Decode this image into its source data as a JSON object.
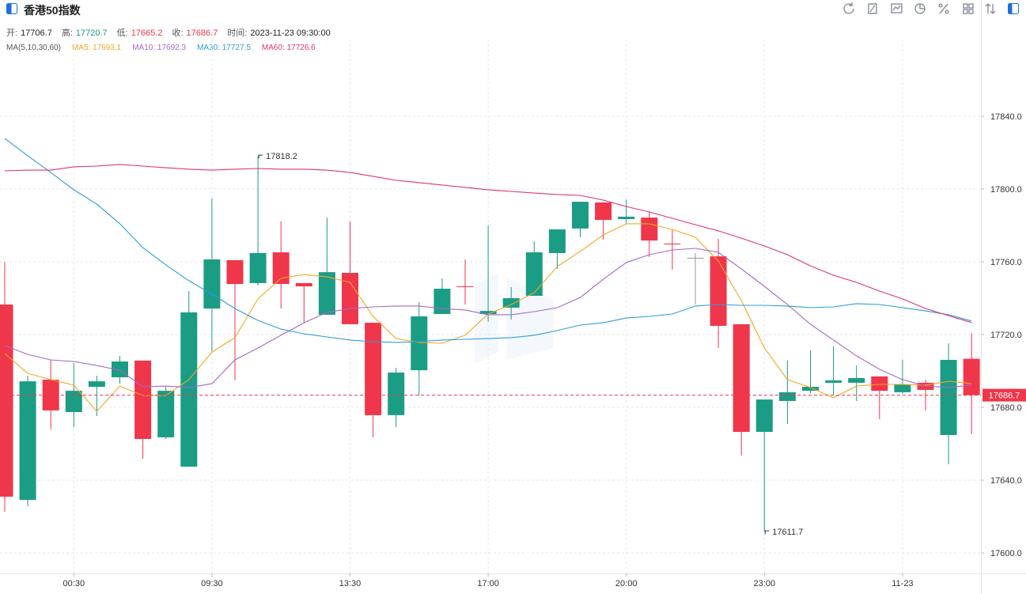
{
  "chart_data": {
    "type": "candlestick",
    "title": "香港50指数",
    "header": {
      "info": [
        {
          "label": "开:",
          "value": 17706.7,
          "color": "#222222"
        },
        {
          "label": "高:",
          "value": 17720.7,
          "color": "#1b9c85"
        },
        {
          "label": "低:",
          "value": 17665.2,
          "color": "#f0364a"
        },
        {
          "label": "收:",
          "value": 17686.7,
          "color": "#f0364a"
        },
        {
          "label": "时间:",
          "value": "2023-11-23 09:30:00",
          "color": "#222222"
        }
      ]
    },
    "ma_title": "MA(5,10,30,60)",
    "legend_separator": ":",
    "categories": [
      "",
      "",
      "",
      "00:30",
      "",
      "",
      "",
      "",
      "",
      "09:30",
      "",
      "",
      "",
      "",
      "",
      "13:30",
      "",
      "",
      "",
      "",
      "",
      "17:00",
      "",
      "",
      "",
      "",
      "",
      "20:00",
      "",
      "",
      "",
      "",
      "",
      "23:00",
      "",
      "",
      "",
      "",
      "",
      "11-23",
      "",
      "",
      ""
    ],
    "open": [
      17736.5,
      17629.1,
      17695.2,
      17677.4,
      17691.3,
      17696.5,
      17705.7,
      17663.5,
      17647.4,
      17734.3,
      17760.9,
      17748.3,
      17765.2,
      17748.3,
      17730.9,
      17753.9,
      17726.5,
      17675.7,
      17700.4,
      17731.3,
      17746.5,
      17731.3,
      17734.8,
      17741.3,
      17764.8,
      17778.3,
      17792.6,
      17783.5,
      17784.3,
      17770.0,
      17762.2,
      17763.0,
      17725.7,
      17666.5,
      17683.5,
      17689.1,
      17693.5,
      17693.5,
      17697.0,
      17688.3,
      17693.5,
      17664.8,
      17706.7
    ],
    "high": [
      17760.0,
      17697.4,
      17706.1,
      17704.3,
      17697.4,
      17708.3,
      17705.7,
      17691.3,
      17743.9,
      17794.8,
      17760.9,
      17818.2,
      17782.2,
      17748.3,
      17784.3,
      17782.2,
      17726.5,
      17701.7,
      17737.8,
      17750.9,
      17761.3,
      17780.0,
      17746.1,
      17771.3,
      17777.8,
      17793.0,
      17792.6,
      17794.3,
      17787.4,
      17777.8,
      17764.8,
      17772.6,
      17725.7,
      17684.3,
      17705.7,
      17711.3,
      17713.5,
      17703.0,
      17697.0,
      17706.1,
      17695.2,
      17715.2,
      17720.7
    ],
    "low": [
      17622.6,
      17625.7,
      17667.8,
      17669.1,
      17675.2,
      17693.0,
      17651.7,
      17662.6,
      17647.4,
      17710.9,
      17694.8,
      17747.0,
      17734.3,
      17726.5,
      17730.9,
      17725.7,
      17663.5,
      17669.1,
      17686.5,
      17731.3,
      17736.5,
      17727.0,
      17728.3,
      17741.3,
      17756.1,
      17773.5,
      17772.2,
      17780.9,
      17762.6,
      17755.7,
      17736.5,
      17712.6,
      17653.5,
      17611.7,
      17670.9,
      17687.8,
      17686.5,
      17683.5,
      17673.5,
      17687.4,
      17678.3,
      17648.7,
      17665.2
    ],
    "close": [
      17630.9,
      17694.3,
      17678.3,
      17689.1,
      17694.3,
      17705.2,
      17662.6,
      17689.1,
      17732.2,
      17761.3,
      17747.8,
      17764.8,
      17747.8,
      17746.5,
      17754.3,
      17725.7,
      17675.7,
      17699.1,
      17730.0,
      17745.2,
      17746.1,
      17733.0,
      17740.0,
      17765.2,
      17777.8,
      17793.0,
      17783.0,
      17784.8,
      17771.7,
      17769.6,
      17762.2,
      17724.8,
      17666.5,
      17684.3,
      17688.3,
      17691.3,
      17694.8,
      17696.1,
      17689.1,
      17692.6,
      17689.6,
      17706.1,
      17686.7
    ],
    "up_color": "#1b9c85",
    "down_color": "#f0364a",
    "flat_color": "#999999",
    "series": [
      {
        "name": "MA5",
        "color": "#f5a623",
        "legend_value": 17693.1,
        "values": [
          17709.6,
          17698.7,
          17695.2,
          17692.2,
          17677.8,
          17691.7,
          17686.5,
          17686.5,
          17695.2,
          17710.4,
          17718.3,
          17739.6,
          17750.9,
          17753.0,
          17751.7,
          17748.7,
          17730.0,
          17717.8,
          17715.7,
          17715.2,
          17719.6,
          17731.3,
          17736.5,
          17743.0,
          17757.4,
          17765.7,
          17774.8,
          17780.9,
          17780.9,
          17777.8,
          17773.5,
          17760.4,
          17738.7,
          17712.6,
          17695.2,
          17690.9,
          17685.2,
          17691.7,
          17692.6,
          17692.6,
          17692.2,
          17694.3,
          17693.1
        ]
      },
      {
        "name": "MA10",
        "color": "#a667c9",
        "legend_value": 17692.3,
        "values": [
          17713.9,
          17709.1,
          17706.1,
          17705.2,
          17703.0,
          17700.4,
          17691.3,
          17691.7,
          17690.9,
          17693.0,
          17706.1,
          17712.6,
          17719.6,
          17726.5,
          17732.2,
          17734.3,
          17735.2,
          17735.7,
          17735.7,
          17734.3,
          17733.5,
          17730.9,
          17730.9,
          17732.6,
          17734.8,
          17740.4,
          17750.4,
          17759.6,
          17763.9,
          17766.5,
          17767.4,
          17765.2,
          17756.1,
          17746.5,
          17736.5,
          17725.7,
          17717.0,
          17708.3,
          17700.9,
          17695.2,
          17691.7,
          17690.9,
          17692.3
        ]
      },
      {
        "name": "MA30",
        "color": "#2d9be0",
        "legend_value": 17727.5,
        "values": [
          17827.8,
          17818.3,
          17809.1,
          17799.6,
          17791.7,
          17780.9,
          17767.8,
          17758.3,
          17749.6,
          17742.2,
          17734.3,
          17727.8,
          17723.0,
          17720.4,
          17718.7,
          17717.0,
          17716.1,
          17715.7,
          17716.1,
          17717.0,
          17717.4,
          17717.8,
          17718.3,
          17719.6,
          17722.2,
          17725.2,
          17726.5,
          17729.1,
          17730.0,
          17731.3,
          17735.7,
          17736.5,
          17736.1,
          17736.1,
          17735.7,
          17734.8,
          17735.2,
          17737.0,
          17736.5,
          17734.8,
          17733.0,
          17730.9,
          17727.5
        ]
      },
      {
        "name": "MA60",
        "color": "#e0327a",
        "legend_value": 17726.6,
        "values": [
          17810.0,
          17810.4,
          17810.4,
          17812.2,
          17812.6,
          17813.5,
          17812.6,
          17811.7,
          17810.9,
          17810.4,
          17810.9,
          17811.3,
          17810.9,
          17810.9,
          17810.4,
          17809.1,
          17807.0,
          17804.8,
          17803.5,
          17802.2,
          17800.9,
          17799.6,
          17798.7,
          17797.8,
          17797.0,
          17796.5,
          17793.9,
          17790.4,
          17787.4,
          17783.9,
          17780.4,
          17777.0,
          17773.0,
          17768.7,
          17763.9,
          17757.8,
          17752.6,
          17748.7,
          17743.9,
          17739.6,
          17734.3,
          17730.4,
          17726.6
        ]
      }
    ],
    "ylim": [
      17588.7,
      17871.3
    ],
    "yticks": [
      {
        "value": 17600,
        "label": "17600.0"
      },
      {
        "value": 17640,
        "label": "17640.0"
      },
      {
        "value": 17680,
        "label": "17680.0"
      },
      {
        "value": 17720,
        "label": "17720.0"
      },
      {
        "value": 17760,
        "label": "17760.0"
      },
      {
        "value": 17800,
        "label": "17800.0"
      },
      {
        "value": 17840,
        "label": "17840.0"
      }
    ],
    "grid": true,
    "last_price_line": true
  }
}
